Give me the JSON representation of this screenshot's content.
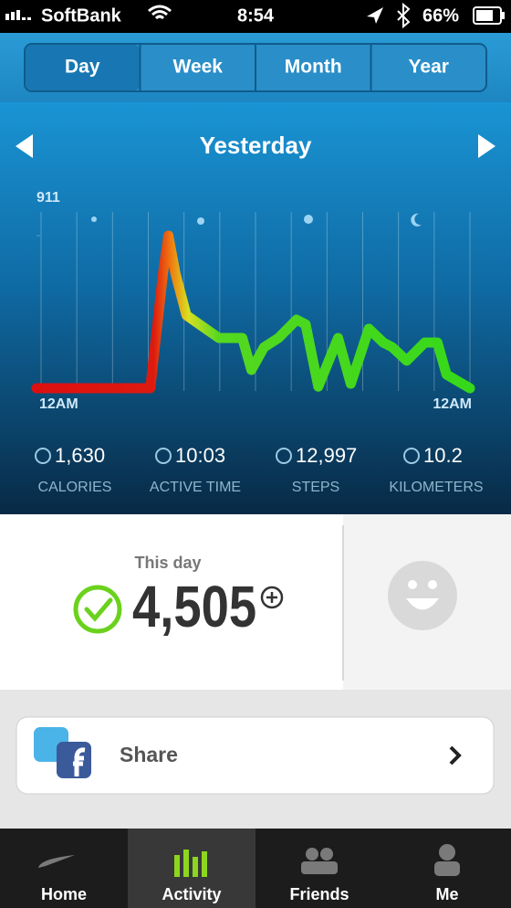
{
  "status_bar": {
    "carrier": "SoftBank",
    "time": "8:54",
    "battery": "66%"
  },
  "tabs": [
    "Day",
    "Week",
    "Month",
    "Year"
  ],
  "selected_tab": 0,
  "header": {
    "title": "Yesterday"
  },
  "graph": {
    "ylim": [
      0,
      911
    ],
    "yticks": [
      911
    ],
    "xlim": [
      0,
      24
    ],
    "x_start_label": "12AM",
    "x_end_label": "12AM",
    "x": [
      0,
      6.3,
      7.0,
      7.3,
      7.7,
      8.3,
      10.1,
      11.4,
      11.9,
      12.6,
      13.4,
      14.4,
      14.9,
      15.6,
      16.7,
      17.4,
      18.4,
      19.2,
      19.7,
      20.5,
      21.5,
      22.2,
      22.7,
      24
    ],
    "values": [
      0,
      0,
      682,
      911,
      682,
      436,
      300,
      300,
      109,
      245,
      300,
      409,
      382,
      10,
      300,
      27,
      355,
      273,
      245,
      164,
      273,
      273,
      82,
      0
    ]
  },
  "stats": [
    {
      "value": "1,630",
      "label": "CALORIES"
    },
    {
      "value": "10:03",
      "label": "ACTIVE TIME"
    },
    {
      "value": "12,997",
      "label": "STEPS"
    },
    {
      "value": "10.2",
      "label": "KILOMETERS"
    }
  ],
  "day_card": {
    "caption": "This day",
    "fuel": "4,505"
  },
  "share": {
    "label": "Share"
  },
  "tab_bar": {
    "items": [
      "Home",
      "Activity",
      "Friends",
      "Me"
    ],
    "selected": 1
  }
}
